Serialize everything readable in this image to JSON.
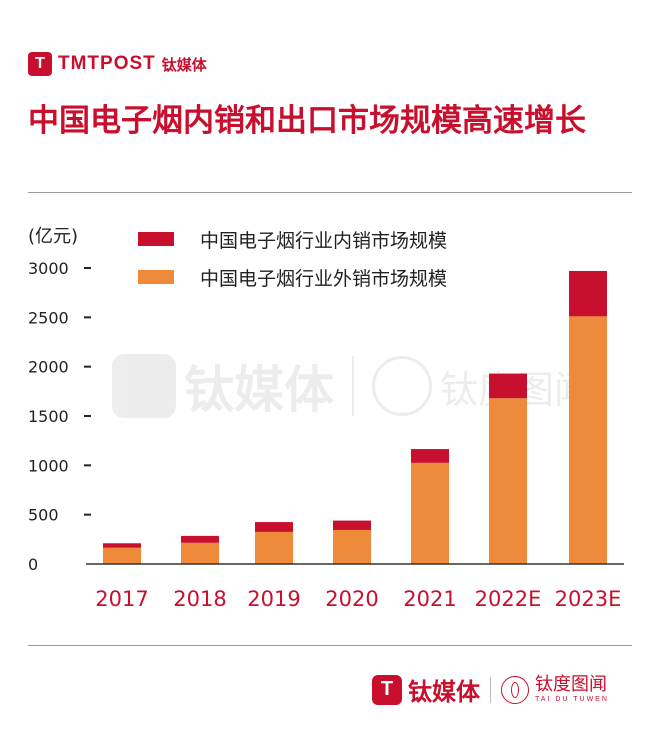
{
  "brand": {
    "logo_glyph": "T",
    "name_en": "TMTPOST",
    "name_cn": "钛媒体"
  },
  "title": "中国电子烟内销和出口市场规模高速增长",
  "unit_label": "(亿元)",
  "colors": {
    "accent": "#c8102e",
    "domestic": "#c8102e",
    "export": "#ee8a3a"
  },
  "chart_data": {
    "type": "bar",
    "stacked": true,
    "categories": [
      "2017",
      "2018",
      "2019",
      "2020",
      "2021",
      "2022E",
      "2023E"
    ],
    "series": [
      {
        "name": "中国电子烟行业外销市场规模",
        "color": "#ee8a3a",
        "values": [
          165,
          215,
          325,
          345,
          1025,
          1680,
          2510
        ]
      },
      {
        "name": "中国电子烟行业内销市场规模",
        "color": "#c8102e",
        "values": [
          45,
          70,
          100,
          95,
          140,
          250,
          460
        ]
      }
    ],
    "yticks": [
      0,
      500,
      1000,
      1500,
      2000,
      2500,
      3000
    ],
    "ylim": [
      0,
      3000
    ],
    "ylabel": "(亿元)",
    "legend": "top",
    "grid": false
  },
  "footer": {
    "logo_glyph": "T",
    "name_cn": "钛媒体",
    "sub_cn": "钛度图闻",
    "sub_en": "TAI DU TUWEN"
  },
  "watermark": {
    "name_cn": "钛媒体",
    "sub_cn": "钛度图闻"
  }
}
